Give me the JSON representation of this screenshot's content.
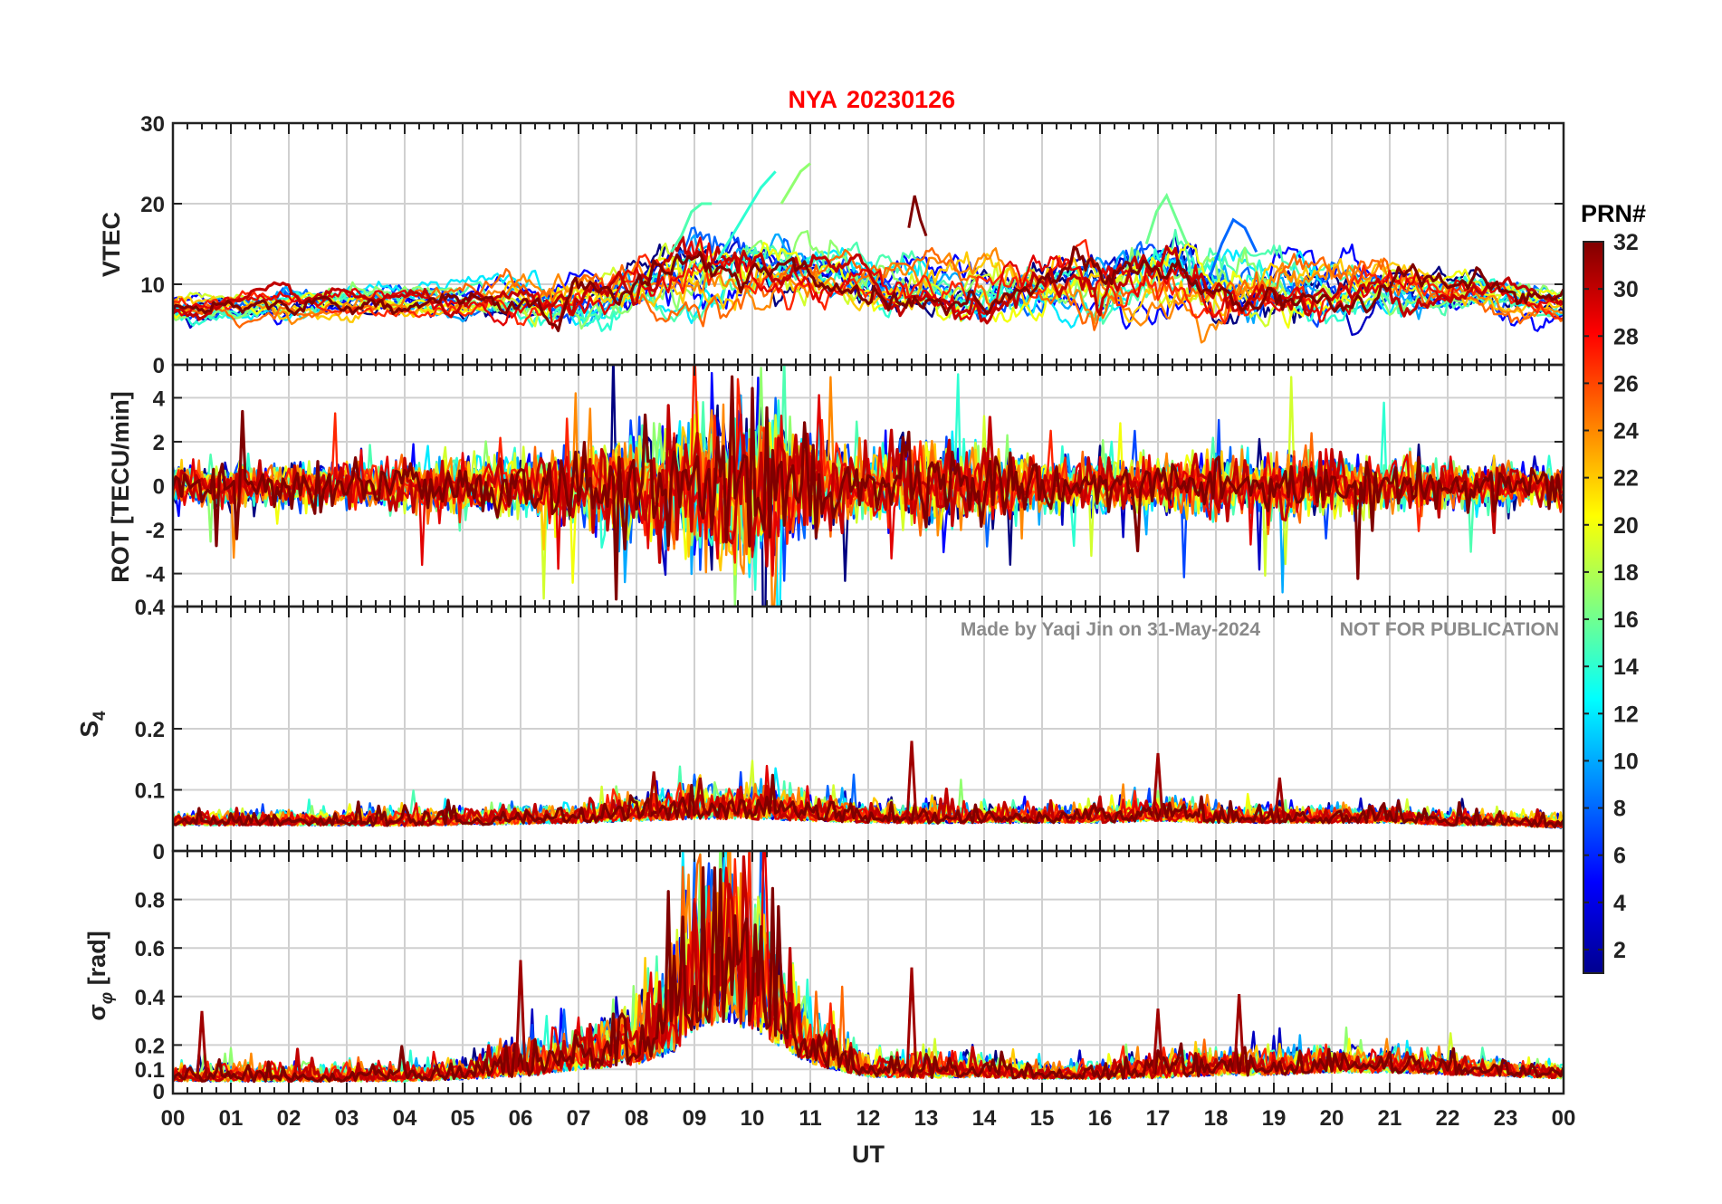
{
  "figure": {
    "station": "NYA",
    "date": "20230126",
    "watermark_author": "Made by Yaqi Jin on 31-May-2024",
    "watermark_notice": "NOT FOR PUBLICATION"
  },
  "chart_data": {
    "type": "line",
    "x_label": "UT",
    "x_ticks": [
      "00",
      "01",
      "02",
      "03",
      "04",
      "05",
      "06",
      "07",
      "08",
      "09",
      "10",
      "11",
      "12",
      "13",
      "14",
      "15",
      "16",
      "17",
      "18",
      "19",
      "20",
      "21",
      "22",
      "23",
      "00"
    ],
    "x_range_hours": [
      0,
      24
    ],
    "colorbar": {
      "title": "PRN#",
      "range": [
        1,
        32
      ],
      "ticks": [
        "2",
        "4",
        "6",
        "8",
        "10",
        "12",
        "14",
        "16",
        "18",
        "20",
        "22",
        "24",
        "26",
        "28",
        "30",
        "32"
      ],
      "colormap": "jet",
      "colors": [
        "#00008f",
        "#0000ff",
        "#0080ff",
        "#00ffff",
        "#80ff80",
        "#ffff00",
        "#ff8000",
        "#ff0000",
        "#800000"
      ]
    },
    "panels": [
      {
        "id": "vtec",
        "ylabel": "VTEC",
        "ylim": [
          0,
          30
        ],
        "ytick_labels": [
          "10",
          "20",
          "30"
        ],
        "grid": true,
        "envelope": {
          "hours": [
            0,
            2,
            4,
            6,
            7,
            8,
            9,
            10,
            11,
            12,
            13,
            14,
            15,
            16,
            17,
            18,
            19,
            20,
            21,
            22,
            23,
            24
          ],
          "base": [
            7,
            7,
            8,
            8,
            8,
            9,
            10,
            11,
            12,
            11,
            10,
            9,
            9,
            9,
            10,
            10,
            10,
            10,
            10,
            9,
            8,
            7
          ],
          "spread": [
            2,
            2,
            2,
            3,
            4,
            4,
            5,
            5,
            4,
            4,
            4,
            4,
            4,
            5,
            5,
            5,
            5,
            4,
            4,
            3,
            3,
            2
          ]
        },
        "highlights": [
          {
            "prn": 15,
            "start_h": 8.6,
            "end_h": 9.3,
            "values": [
              14,
              16,
              19,
              20,
              20
            ]
          },
          {
            "prn": 14,
            "start_h": 9.4,
            "end_h": 10.4,
            "values": [
              13,
              16,
              19,
              22,
              24
            ]
          },
          {
            "prn": 17,
            "start_h": 10.5,
            "end_h": 11.0,
            "values": [
              20,
              22,
              24,
              25
            ]
          },
          {
            "prn": 32,
            "start_h": 12.7,
            "end_h": 13.0,
            "values": [
              17,
              21,
              18,
              16
            ]
          },
          {
            "prn": 16,
            "start_h": 16.8,
            "end_h": 17.5,
            "values": [
              15,
              19,
              21,
              18,
              15
            ]
          },
          {
            "prn": 8,
            "start_h": 17.9,
            "end_h": 18.7,
            "values": [
              11,
              15,
              18,
              17,
              14
            ]
          }
        ]
      },
      {
        "id": "rot",
        "ylabel": "ROT [TECU/min]",
        "ylim": [
          -5.5,
          5.5
        ],
        "ytick_labels": [
          "-4",
          "-2",
          "0",
          "2",
          "4"
        ],
        "top_label": "0",
        "grid": true,
        "envelope": {
          "hours": [
            0,
            2,
            4,
            6,
            7,
            8,
            9,
            10,
            11,
            12,
            13,
            14,
            15,
            16,
            17,
            18,
            19,
            20,
            21,
            22,
            23,
            24
          ],
          "amplitude": [
            0.8,
            0.8,
            1.0,
            1.2,
            1.5,
            2.0,
            2.8,
            3.8,
            1.8,
            1.2,
            1.8,
            1.3,
            1.1,
            1.0,
            1.1,
            1.2,
            1.2,
            1.1,
            1.0,
            0.9,
            0.8,
            0.7
          ]
        }
      },
      {
        "id": "s4",
        "ylabel": "S4",
        "ylim": [
          0,
          0.4
        ],
        "ytick_labels": [
          "0.1",
          "0.2"
        ],
        "top_label": "0.4",
        "grid": true,
        "envelope": {
          "hours": [
            0,
            2,
            4,
            6,
            7,
            8,
            9,
            10,
            11,
            12,
            13,
            14,
            15,
            16,
            17,
            18,
            19,
            20,
            21,
            22,
            23,
            24
          ],
          "base": [
            0.045,
            0.045,
            0.045,
            0.048,
            0.05,
            0.055,
            0.06,
            0.06,
            0.055,
            0.05,
            0.05,
            0.05,
            0.05,
            0.05,
            0.055,
            0.05,
            0.05,
            0.05,
            0.05,
            0.045,
            0.045,
            0.04
          ],
          "spread": [
            0.015,
            0.015,
            0.02,
            0.02,
            0.02,
            0.03,
            0.04,
            0.04,
            0.03,
            0.02,
            0.025,
            0.02,
            0.02,
            0.02,
            0.03,
            0.02,
            0.02,
            0.02,
            0.02,
            0.015,
            0.015,
            0.015
          ]
        },
        "spikes": [
          {
            "hour": 12.75,
            "value": 0.18
          },
          {
            "hour": 17.0,
            "value": 0.16
          },
          {
            "hour": 8.3,
            "value": 0.13
          },
          {
            "hour": 9.1,
            "value": 0.12
          },
          {
            "hour": 19.1,
            "value": 0.12
          }
        ]
      },
      {
        "id": "sigma_phi",
        "ylabel": "σφ [rad]",
        "ylim": [
          0,
          1.0
        ],
        "ytick_labels": [
          "0.1",
          "0.2",
          "0.4",
          "0.6",
          "0.8"
        ],
        "bottom_label": "0",
        "top_label": "0",
        "grid": true,
        "envelope": {
          "hours": [
            0,
            2,
            4,
            5,
            6,
            7,
            8,
            8.6,
            9,
            9.5,
            10,
            10.5,
            11,
            12,
            13,
            14,
            15,
            16,
            17,
            18,
            19,
            20,
            21,
            22,
            23,
            24
          ],
          "base": [
            0.06,
            0.06,
            0.06,
            0.07,
            0.09,
            0.12,
            0.16,
            0.22,
            0.35,
            0.4,
            0.35,
            0.25,
            0.15,
            0.08,
            0.08,
            0.08,
            0.07,
            0.07,
            0.08,
            0.09,
            0.09,
            0.1,
            0.1,
            0.09,
            0.08,
            0.07
          ],
          "spread": [
            0.05,
            0.05,
            0.05,
            0.06,
            0.1,
            0.12,
            0.2,
            0.3,
            0.5,
            0.55,
            0.45,
            0.3,
            0.15,
            0.06,
            0.08,
            0.06,
            0.05,
            0.05,
            0.08,
            0.08,
            0.07,
            0.07,
            0.07,
            0.06,
            0.05,
            0.04
          ]
        },
        "spikes": [
          {
            "hour": 6.0,
            "value": 0.55
          },
          {
            "hour": 12.75,
            "value": 0.52
          },
          {
            "hour": 18.4,
            "value": 0.41
          },
          {
            "hour": 17.0,
            "value": 0.35
          },
          {
            "hour": 0.5,
            "value": 0.34
          }
        ]
      }
    ]
  }
}
